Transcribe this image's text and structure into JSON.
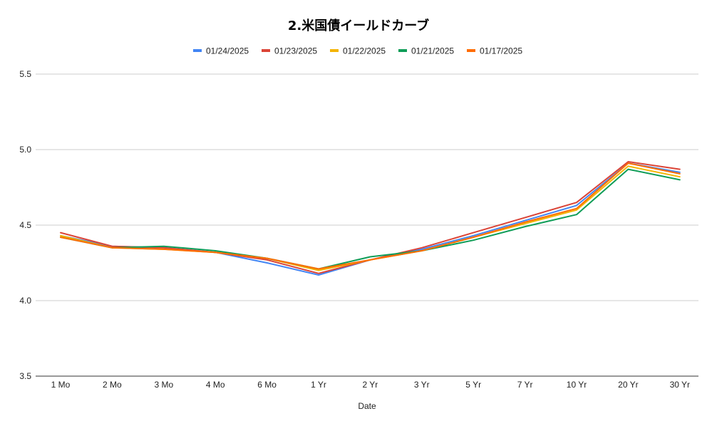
{
  "chart_data": {
    "type": "line",
    "title": "2.米国債イールドカーブ",
    "xlabel": "Date",
    "ylabel": "",
    "ylim": [
      3.5,
      5.5
    ],
    "yticks": [
      "3.5",
      "4.0",
      "4.5",
      "5.0",
      "5.5"
    ],
    "grid": true,
    "legend_position": "top",
    "categories": [
      "1 Mo",
      "2 Mo",
      "3 Mo",
      "4 Mo",
      "6 Mo",
      "1 Yr",
      "2 Yr",
      "3 Yr",
      "5 Yr",
      "7 Yr",
      "10 Yr",
      "20 Yr",
      "30 Yr"
    ],
    "series": [
      {
        "name": "01/24/2025",
        "color": "#4285f4",
        "values": [
          4.43,
          4.36,
          4.35,
          4.32,
          4.25,
          4.17,
          4.27,
          4.34,
          4.43,
          4.53,
          4.63,
          4.91,
          4.85
        ]
      },
      {
        "name": "01/23/2025",
        "color": "#db4437",
        "values": [
          4.45,
          4.36,
          4.35,
          4.32,
          4.27,
          4.18,
          4.27,
          4.35,
          4.45,
          4.55,
          4.65,
          4.92,
          4.87
        ]
      },
      {
        "name": "01/22/2025",
        "color": "#f4b400",
        "values": [
          4.43,
          4.35,
          4.34,
          4.32,
          4.28,
          4.2,
          4.27,
          4.33,
          4.42,
          4.51,
          4.6,
          4.89,
          4.82
        ]
      },
      {
        "name": "01/21/2025",
        "color": "#0f9d58",
        "values": [
          4.42,
          4.35,
          4.36,
          4.33,
          4.28,
          4.21,
          4.29,
          4.33,
          4.4,
          4.49,
          4.57,
          4.87,
          4.8
        ]
      },
      {
        "name": "01/17/2025",
        "color": "#ff6d01",
        "values": [
          4.42,
          4.35,
          4.34,
          4.32,
          4.28,
          4.21,
          4.27,
          4.33,
          4.42,
          4.52,
          4.61,
          4.91,
          4.84
        ]
      }
    ]
  }
}
